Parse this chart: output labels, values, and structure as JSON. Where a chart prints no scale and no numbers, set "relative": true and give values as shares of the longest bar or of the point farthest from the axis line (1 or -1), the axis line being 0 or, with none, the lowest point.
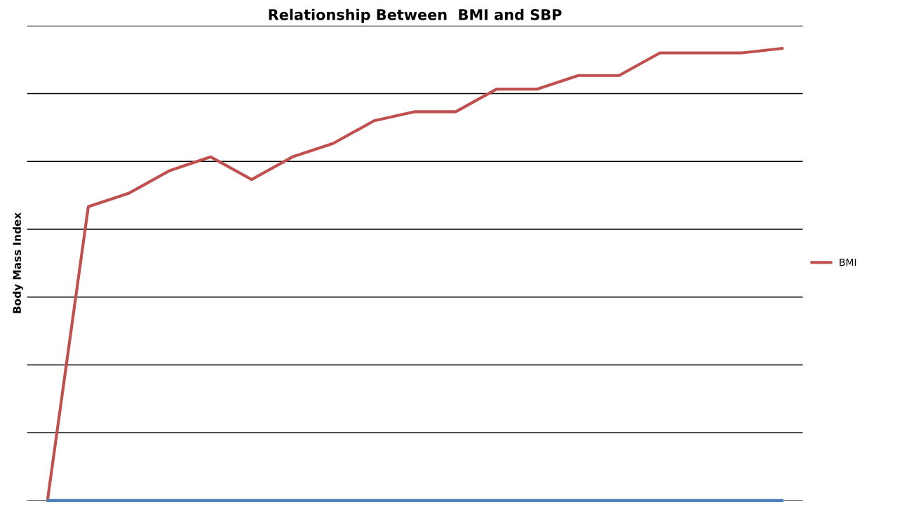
{
  "chart_data": {
    "type": "line",
    "title": "Relationship Between  BMI and SBP",
    "ylabel": "Body Mass Index",
    "relative": true,
    "categories": [
      null,
      null,
      null,
      null,
      null,
      null,
      null,
      null,
      null,
      null,
      null,
      null,
      null,
      null,
      null,
      null,
      null,
      null,
      null
    ],
    "series": [
      {
        "name": "BMI",
        "color": "#c0504d",
        "values": [
          0,
          0.65,
          0.68,
          0.73,
          0.76,
          0.71,
          0.76,
          0.79,
          0.84,
          0.86,
          0.86,
          0.91,
          0.91,
          0.94,
          0.94,
          0.99,
          0.99,
          0.99,
          1
        ]
      },
      {
        "color": "#4f81bd",
        "values": [
          0,
          0,
          0,
          0,
          0,
          0,
          0,
          0,
          0,
          0,
          0,
          0,
          0,
          0,
          0,
          0,
          0,
          0,
          0
        ]
      }
    ],
    "grid": "y",
    "legend": "right"
  }
}
